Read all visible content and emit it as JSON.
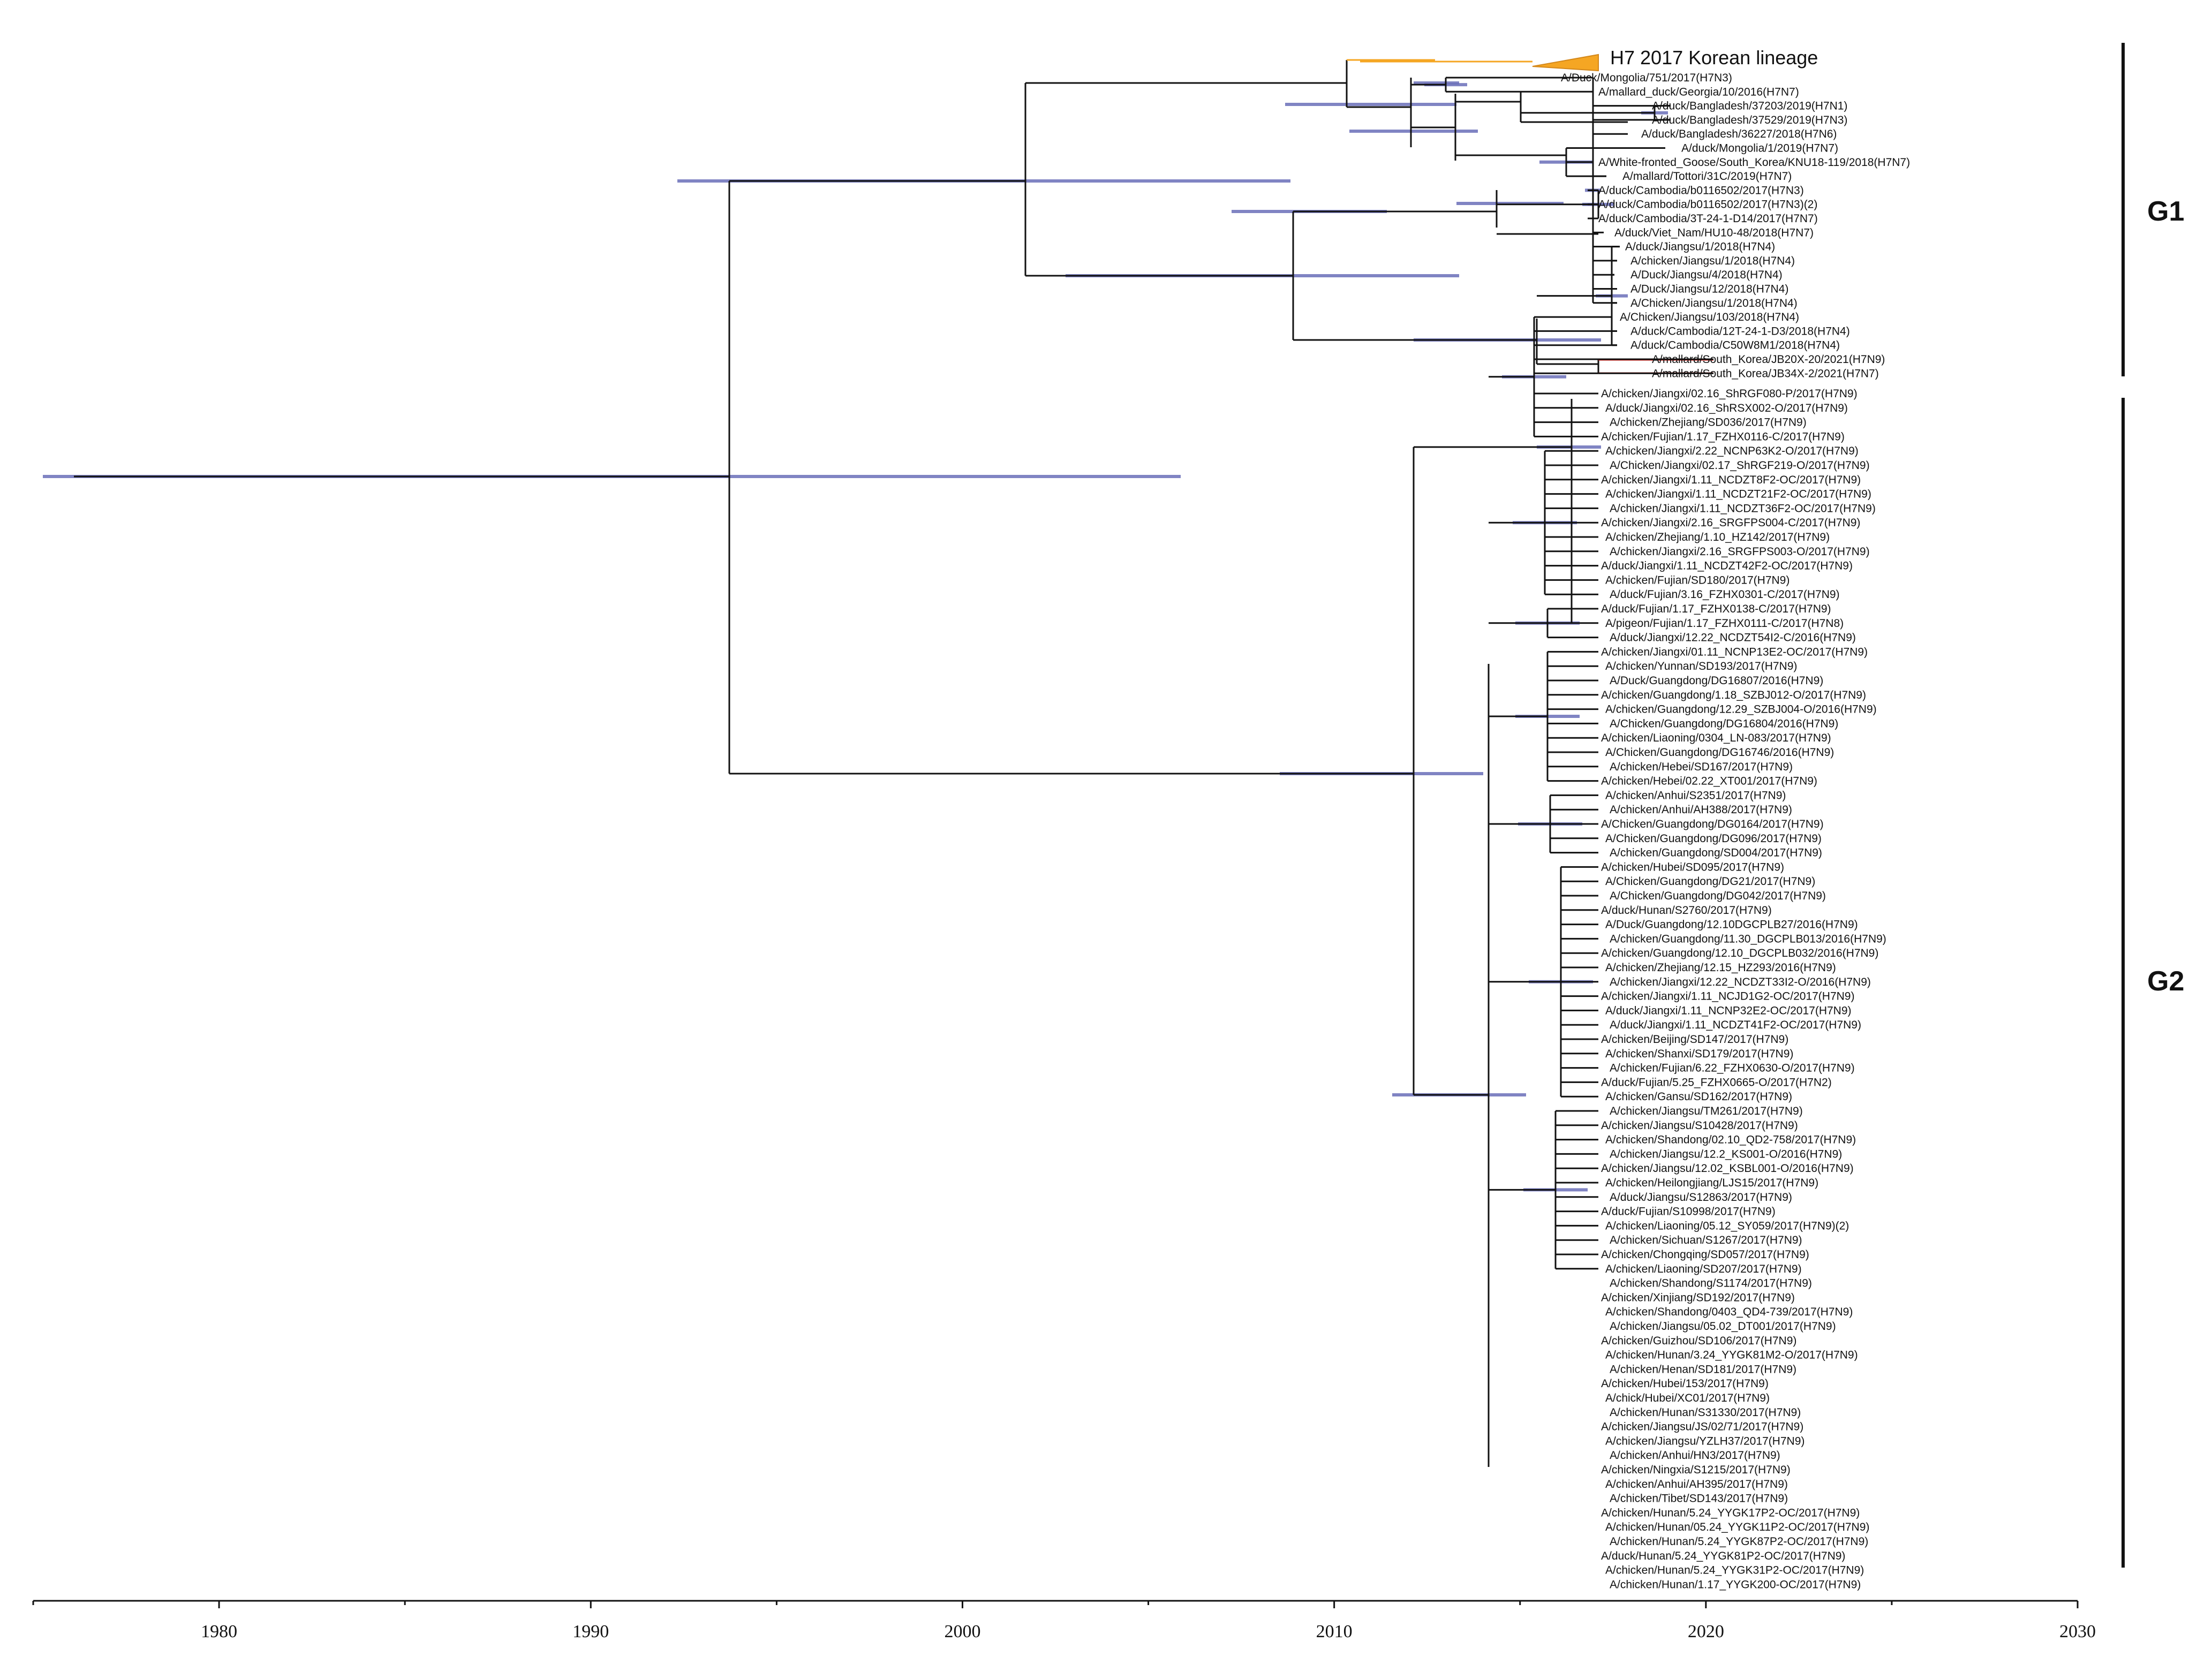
{
  "figure": {
    "type": "time-scaled phylogenetic tree",
    "axis_ticks": [
      "1980",
      "1990",
      "2000",
      "2010",
      "2020",
      "2030"
    ],
    "collapsed_clade_label": "H7 2017 Korean lineage",
    "groups": [
      {
        "label": "G1"
      },
      {
        "label": "G2"
      }
    ],
    "colors": {
      "branch": "#111111",
      "hpd_bar": "#6a6fb8",
      "korean_lineage": "#f5a623",
      "highlight_2021": "#e0241b"
    }
  },
  "g1_tips": [
    "A/Duck/Mongolia/751/2017(H7N3)",
    "A/mallard_duck/Georgia/10/2016(H7N7)",
    "A/duck/Bangladesh/37203/2019(H7N1)",
    "A/duck/Bangladesh/37529/2019(H7N3)",
    "A/duck/Bangladesh/36227/2018(H7N6)",
    "A/duck/Mongolia/1/2019(H7N7)",
    "A/White-fronted_Goose/South_Korea/KNU18-119/2018(H7N7)",
    "A/mallard/Tottori/31C/2019(H7N7)",
    "A/duck/Cambodia/b0116502/2017(H7N3)",
    "A/duck/Cambodia/b0116502/2017(H7N3)(2)",
    "A/duck/Cambodia/3T-24-1-D14/2017(H7N7)",
    "A/duck/Viet_Nam/HU10-48/2018(H7N7)",
    "A/duck/Jiangsu/1/2018(H7N4)",
    "A/chicken/Jiangsu/1/2018(H7N4)",
    "A/Duck/Jiangsu/4/2018(H7N4)",
    "A/Duck/Jiangsu/12/2018(H7N4)",
    "A/Chicken/Jiangsu/1/2018(H7N4)",
    "A/Chicken/Jiangsu/103/2018(H7N4)",
    "A/duck/Cambodia/12T-24-1-D3/2018(H7N4)",
    "A/duck/Cambodia/C50W8M1/2018(H7N4)",
    "A/mallard/South_Korea/JB20X-20/2021(H7N9)",
    "A/mallard/South_Korea/JB34X-2/2021(H7N7)"
  ],
  "g2_tips": [
    "A/chicken/Jiangxi/02.16_ShRGF080-P/2017(H7N9)",
    "A/duck/Jiangxi/02.16_ShRSX002-O/2017(H7N9)",
    "A/chicken/Zhejiang/SD036/2017(H7N9)",
    "A/chicken/Fujian/1.17_FZHX0116-C/2017(H7N9)",
    "A/chicken/Jiangxi/2.22_NCNP63K2-O/2017(H7N9)",
    "A/Chicken/Jiangxi/02.17_ShRGF219-O/2017(H7N9)",
    "A/chicken/Jiangxi/1.11_NCDZT8F2-OC/2017(H7N9)",
    "A/chicken/Jiangxi/1.11_NCDZT21F2-OC/2017(H7N9)",
    "A/chicken/Jiangxi/1.11_NCDZT36F2-OC/2017(H7N9)",
    "A/chicken/Jiangxi/2.16_SRGFPS004-C/2017(H7N9)",
    "A/chicken/Zhejiang/1.10_HZ142/2017(H7N9)",
    "A/chicken/Jiangxi/2.16_SRGFPS003-O/2017(H7N9)",
    "A/duck/Jiangxi/1.11_NCDZT42F2-OC/2017(H7N9)",
    "A/chicken/Fujian/SD180/2017(H7N9)",
    "A/duck/Fujian/3.16_FZHX0301-C/2017(H7N9)",
    "A/duck/Fujian/1.17_FZHX0138-C/2017(H7N9)",
    "A/pigeon/Fujian/1.17_FZHX0111-C/2017(H7N8)",
    "A/duck/Jiangxi/12.22_NCDZT54I2-C/2016(H7N9)",
    "A/chicken/Jiangxi/01.11_NCNP13E2-OC/2017(H7N9)",
    "A/chicken/Yunnan/SD193/2017(H7N9)",
    "A/Duck/Guangdong/DG16807/2016(H7N9)",
    "A/chicken/Guangdong/1.18_SZBJ012-O/2017(H7N9)",
    "A/chicken/Guangdong/12.29_SZBJ004-O/2016(H7N9)",
    "A/Chicken/Guangdong/DG16804/2016(H7N9)",
    "A/chicken/Liaoning/0304_LN-083/2017(H7N9)",
    "A/Chicken/Guangdong/DG16746/2016(H7N9)",
    "A/chicken/Hebei/SD167/2017(H7N9)",
    "A/chicken/Hebei/02.22_XT001/2017(H7N9)",
    "A/chicken/Anhui/S2351/2017(H7N9)",
    "A/chicken/Anhui/AH388/2017(H7N9)",
    "A/Chicken/Guangdong/DG0164/2017(H7N9)",
    "A/Chicken/Guangdong/DG096/2017(H7N9)",
    "A/chicken/Guangdong/SD004/2017(H7N9)",
    "A/chicken/Hubei/SD095/2017(H7N9)",
    "A/Chicken/Guangdong/DG21/2017(H7N9)",
    "A/Chicken/Guangdong/DG042/2017(H7N9)",
    "A/duck/Hunan/S2760/2017(H7N9)",
    "A/Duck/Guangdong/12.10DGCPLB27/2016(H7N9)",
    "A/chicken/Guangdong/11.30_DGCPLB013/2016(H7N9)",
    "A/chicken/Guangdong/12.10_DGCPLB032/2016(H7N9)",
    "A/chicken/Zhejiang/12.15_HZ293/2016(H7N9)",
    "A/chicken/Jiangxi/12.22_NCDZT33I2-O/2016(H7N9)",
    "A/chicken/Jiangxi/1.11_NCJD1G2-OC/2017(H7N9)",
    "A/duck/Jiangxi/1.11_NCNP32E2-OC/2017(H7N9)",
    "A/duck/Jiangxi/1.11_NCDZT41F2-OC/2017(H7N9)",
    "A/chicken/Beijing/SD147/2017(H7N9)",
    "A/chicken/Shanxi/SD179/2017(H7N9)",
    "A/chicken/Fujian/6.22_FZHX0630-O/2017(H7N9)",
    "A/duck/Fujian/5.25_FZHX0665-O/2017(H7N2)",
    "A/chicken/Gansu/SD162/2017(H7N9)",
    "A/chicken/Jiangsu/TM261/2017(H7N9)",
    "A/chicken/Jiangsu/S10428/2017(H7N9)",
    "A/chicken/Shandong/02.10_QD2-758/2017(H7N9)",
    "A/chicken/Jiangsu/12.2_KS001-O/2016(H7N9)",
    "A/chicken/Jiangsu/12.02_KSBL001-O/2016(H7N9)",
    "A/chicken/Heilongjiang/LJS15/2017(H7N9)",
    "A/duck/Jiangsu/S12863/2017(H7N9)",
    "A/duck/Fujian/S10998/2017(H7N9)",
    "A/chicken/Liaoning/05.12_SY059/2017(H7N9)(2)",
    "A/chicken/Sichuan/S1267/2017(H7N9)",
    "A/chicken/Chongqing/SD057/2017(H7N9)",
    "A/chicken/Liaoning/SD207/2017(H7N9)",
    "A/chicken/Shandong/S1174/2017(H7N9)",
    "A/chicken/Xinjiang/SD192/2017(H7N9)",
    "A/chicken/Shandong/0403_QD4-739/2017(H7N9)",
    "A/chicken/Jiangsu/05.02_DT001/2017(H7N9)",
    "A/chicken/Guizhou/SD106/2017(H7N9)",
    "A/chicken/Hunan/3.24_YYGK81M2-O/2017(H7N9)",
    "A/chicken/Henan/SD181/2017(H7N9)",
    "A/chicken/Hubei/153/2017(H7N9)",
    "A/chick/Hubei/XC01/2017(H7N9)",
    "A/chicken/Hunan/S31330/2017(H7N9)",
    "A/chicken/Jiangsu/JS/02/71/2017(H7N9)",
    "A/chicken/Jiangsu/YZLH37/2017(H7N9)",
    "A/chicken/Anhui/HN3/2017(H7N9)",
    "A/chicken/Ningxia/S1215/2017(H7N9)",
    "A/chicken/Anhui/AH395/2017(H7N9)",
    "A/chicken/Tibet/SD143/2017(H7N9)",
    "A/chicken/Hunan/5.24_YYGK17P2-OC/2017(H7N9)",
    "A/chicken/Hunan/05.24_YYGK11P2-OC/2017(H7N9)",
    "A/chicken/Hunan/5.24_YYGK87P2-OC/2017(H7N9)",
    "A/duck/Hunan/5.24_YYGK81P2-OC/2017(H7N9)",
    "A/chicken/Hunan/5.24_YYGK31P2-OC/2017(H7N9)",
    "A/chicken/Hunan/1.17_YYGK200-OC/2017(H7N9)"
  ]
}
